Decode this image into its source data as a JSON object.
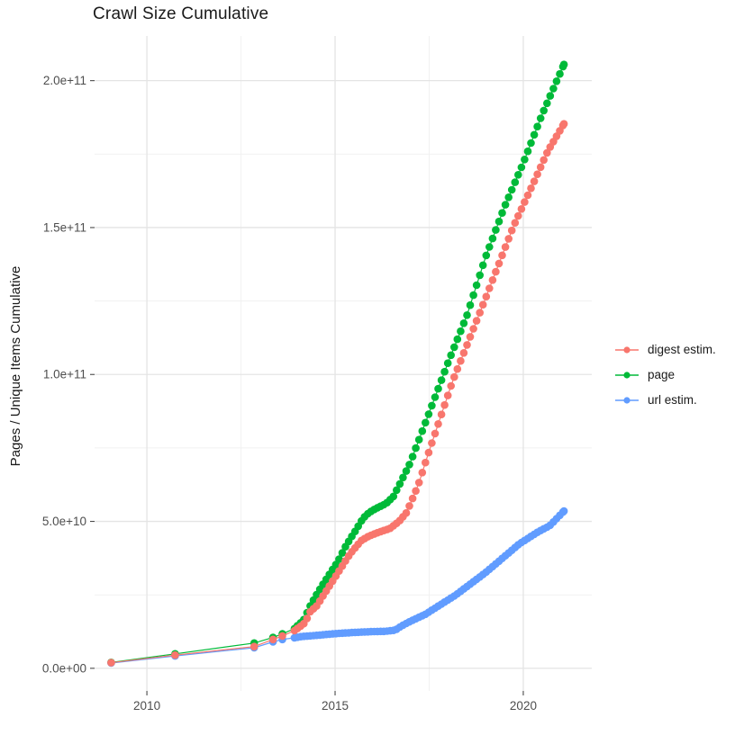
{
  "title": "Crawl Size Cumulative",
  "axes": {
    "y_title": "Pages / Unique Items Cumulative",
    "x_tick_labels": [
      "2010",
      "2015",
      "2020"
    ],
    "y_tick_labels": [
      "0.0e+00",
      "5.0e+10",
      "1.0e+11",
      "1.5e+11",
      "2.0e+11"
    ]
  },
  "legend": {
    "items": [
      {
        "label": "digest estim.",
        "color": "#F8766D"
      },
      {
        "label": "page",
        "color": "#00BA38"
      },
      {
        "label": "url estim.",
        "color": "#619CFF"
      }
    ]
  },
  "colors": {
    "background": "#FFFFFF",
    "grid_major": "#E4E4E4",
    "grid_minor": "#F1F1F1",
    "tick_mark": "#4a4a4a",
    "tick_label": "#4D4D4D",
    "text": "#1A1A1A"
  },
  "chart_data": {
    "type": "scatter",
    "title": "Crawl Size Cumulative",
    "xlabel": "",
    "ylabel": "Pages / Unique Items Cumulative",
    "unit_note": "point values stored in billions (1e9); y axis shown 0 to 2.0e+11",
    "grid": true,
    "legend_position": "right",
    "x_range": [
      2008.61,
      2021.82
    ],
    "y_range_e9": [
      -7.7,
      215.2
    ],
    "x_major_ticks": [
      2010,
      2015,
      2020
    ],
    "x_minor_ticks": [
      2012.5,
      2017.5
    ],
    "y_major_ticks_e9": [
      0,
      50,
      100,
      150,
      200
    ],
    "y_minor_ticks_e9": [
      25,
      75,
      125,
      175
    ],
    "sample_start_year": 2014.0,
    "sample_step_years": 0.085,
    "series": [
      {
        "name": "page",
        "color": "#00BA38",
        "points_e9": [
          [
            2009.05,
            2.0
          ],
          [
            2010.75,
            4.9
          ],
          [
            2012.85,
            8.6
          ],
          [
            2013.35,
            10.5
          ],
          [
            2013.6,
            11.7
          ],
          [
            2013.92,
            13.5
          ],
          [
            2014.05,
            15.1
          ],
          [
            2014.16,
            16.3
          ],
          [
            2014.35,
            21.5
          ],
          [
            2014.55,
            26.0
          ],
          [
            2014.83,
            31.6
          ],
          [
            2015.07,
            36.3
          ],
          [
            2015.3,
            42.0
          ],
          [
            2015.55,
            47.0
          ],
          [
            2015.74,
            51.0
          ],
          [
            2015.9,
            53.0
          ],
          [
            2016.1,
            54.5
          ],
          [
            2016.35,
            56.0
          ],
          [
            2016.55,
            58.5
          ],
          [
            2016.75,
            63.5
          ],
          [
            2017.0,
            70.0
          ],
          [
            2017.5,
            87.0
          ],
          [
            2018.0,
            104.0
          ],
          [
            2018.5,
            120.0
          ],
          [
            2019.0,
            140.0
          ],
          [
            2019.5,
            157.0
          ],
          [
            2020.0,
            172.0
          ],
          [
            2020.5,
            188.5
          ],
          [
            2021.08,
            205.5
          ]
        ]
      },
      {
        "name": "url estim.",
        "color": "#619CFF",
        "points_e9": [
          [
            2009.05,
            1.8
          ],
          [
            2010.75,
            4.2
          ],
          [
            2012.85,
            7.0
          ],
          [
            2013.35,
            9.0
          ],
          [
            2013.6,
            9.8
          ],
          [
            2013.92,
            10.4
          ],
          [
            2014.1,
            10.8
          ],
          [
            2014.5,
            11.2
          ],
          [
            2015.0,
            11.8
          ],
          [
            2015.5,
            12.2
          ],
          [
            2016.0,
            12.5
          ],
          [
            2016.35,
            12.6
          ],
          [
            2016.6,
            13.0
          ],
          [
            2016.75,
            14.3
          ],
          [
            2017.0,
            16.0
          ],
          [
            2017.4,
            18.4
          ],
          [
            2018.2,
            24.9
          ],
          [
            2019.0,
            32.6
          ],
          [
            2019.9,
            42.4
          ],
          [
            2020.4,
            46.5
          ],
          [
            2020.7,
            48.5
          ],
          [
            2021.08,
            53.5
          ]
        ]
      },
      {
        "name": "digest estim.",
        "color": "#F8766D",
        "points_e9": [
          [
            2009.05,
            1.9
          ],
          [
            2010.75,
            4.5
          ],
          [
            2012.85,
            7.4
          ],
          [
            2013.35,
            9.8
          ],
          [
            2013.6,
            11.0
          ],
          [
            2013.92,
            12.8
          ],
          [
            2014.05,
            14.0
          ],
          [
            2014.2,
            15.5
          ],
          [
            2014.35,
            19.5
          ],
          [
            2014.5,
            21.0
          ],
          [
            2014.65,
            24.0
          ],
          [
            2014.85,
            28.0
          ],
          [
            2015.1,
            33.0
          ],
          [
            2015.4,
            39.0
          ],
          [
            2015.7,
            43.5
          ],
          [
            2015.9,
            45.0
          ],
          [
            2016.2,
            46.5
          ],
          [
            2016.45,
            47.5
          ],
          [
            2016.7,
            50.0
          ],
          [
            2016.9,
            53.0
          ],
          [
            2017.2,
            62.0
          ],
          [
            2017.5,
            74.0
          ],
          [
            2018.13,
            98.0
          ],
          [
            2019.0,
            126.0
          ],
          [
            2019.74,
            150.5
          ],
          [
            2020.3,
            166.0
          ],
          [
            2020.65,
            176.0
          ],
          [
            2021.08,
            185.3
          ]
        ]
      }
    ]
  }
}
